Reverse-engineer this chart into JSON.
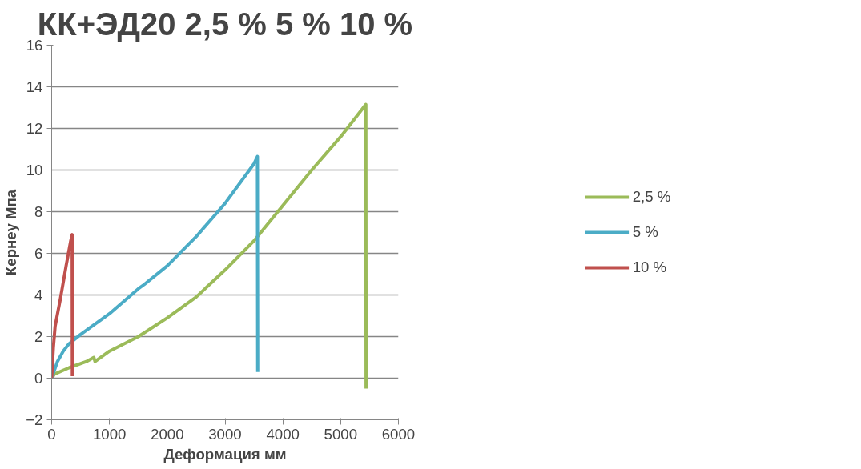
{
  "chart_data": {
    "type": "line",
    "title": "КК+ЭД20 2,5 % 5 % 10 %",
    "xlabel": "Деформация мм",
    "ylabel": "Кернеу Мпа",
    "xlim": [
      0,
      6000
    ],
    "xticks": [
      0,
      1000,
      2000,
      3000,
      4000,
      5000,
      6000
    ],
    "ylim": [
      -2,
      16
    ],
    "yticks": [
      -2,
      0,
      2,
      4,
      6,
      8,
      10,
      12,
      14,
      16
    ],
    "grid": "y",
    "legend": "right",
    "marker": "none",
    "line_style": "solid",
    "series": [
      {
        "name": "2,5 %",
        "color": "#9bbb59",
        "x": [
          0,
          50,
          300,
          600,
          730,
          750,
          1000,
          1500,
          2000,
          2500,
          3000,
          3500,
          4000,
          4500,
          5000,
          5436,
          5440
        ],
        "values": [
          0,
          0.2,
          0.5,
          0.8,
          1.0,
          0.8,
          1.3,
          2.0,
          2.9,
          3.9,
          5.2,
          6.6,
          8.3,
          10.0,
          11.6,
          13.15,
          -0.5
        ]
      },
      {
        "name": "5 %",
        "color": "#4bacc6",
        "x": [
          0,
          100,
          200,
          300,
          500,
          1000,
          1500,
          1600,
          2000,
          2500,
          3000,
          3500,
          3560,
          3565
        ],
        "values": [
          0,
          0.8,
          1.3,
          1.65,
          2.1,
          3.1,
          4.3,
          4.5,
          5.4,
          6.8,
          8.4,
          10.3,
          10.65,
          0.3
        ]
      },
      {
        "name": "10 %",
        "color": "#c0504d",
        "x": [
          0,
          30,
          60,
          150,
          250,
          330,
          355,
          358
        ],
        "values": [
          0,
          1.5,
          2.5,
          3.8,
          5.4,
          6.6,
          6.9,
          0.1
        ]
      }
    ]
  }
}
